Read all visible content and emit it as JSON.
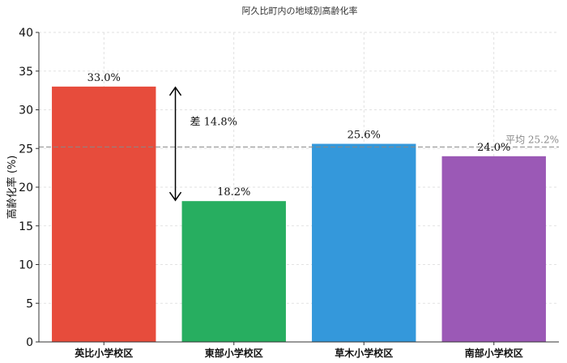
{
  "chart_data": {
    "type": "bar",
    "title": "阿久比町内の地域別高齢化率",
    "ylabel": "高齢化率 (%)",
    "xlabel": "",
    "categories": [
      "英比小学校区",
      "東部小学校区",
      "草木小学校区",
      "南部小学校区"
    ],
    "values": [
      33.0,
      18.2,
      25.6,
      24.0
    ],
    "value_labels": [
      "33.0%",
      "18.2%",
      "25.6%",
      "24.0%"
    ],
    "colors": [
      "#e74c3c",
      "#27ae60",
      "#3498db",
      "#9b59b6"
    ],
    "ylim": [
      0,
      40
    ],
    "yticks": [
      0,
      5,
      10,
      15,
      20,
      25,
      30,
      35,
      40
    ],
    "grid": true,
    "average": {
      "value": 25.2,
      "label": "平均 25.2%",
      "color": "#888888"
    },
    "difference": {
      "from_category": "英比小学校区",
      "to_category": "東部小学校区",
      "label": "差 14.8%"
    }
  }
}
